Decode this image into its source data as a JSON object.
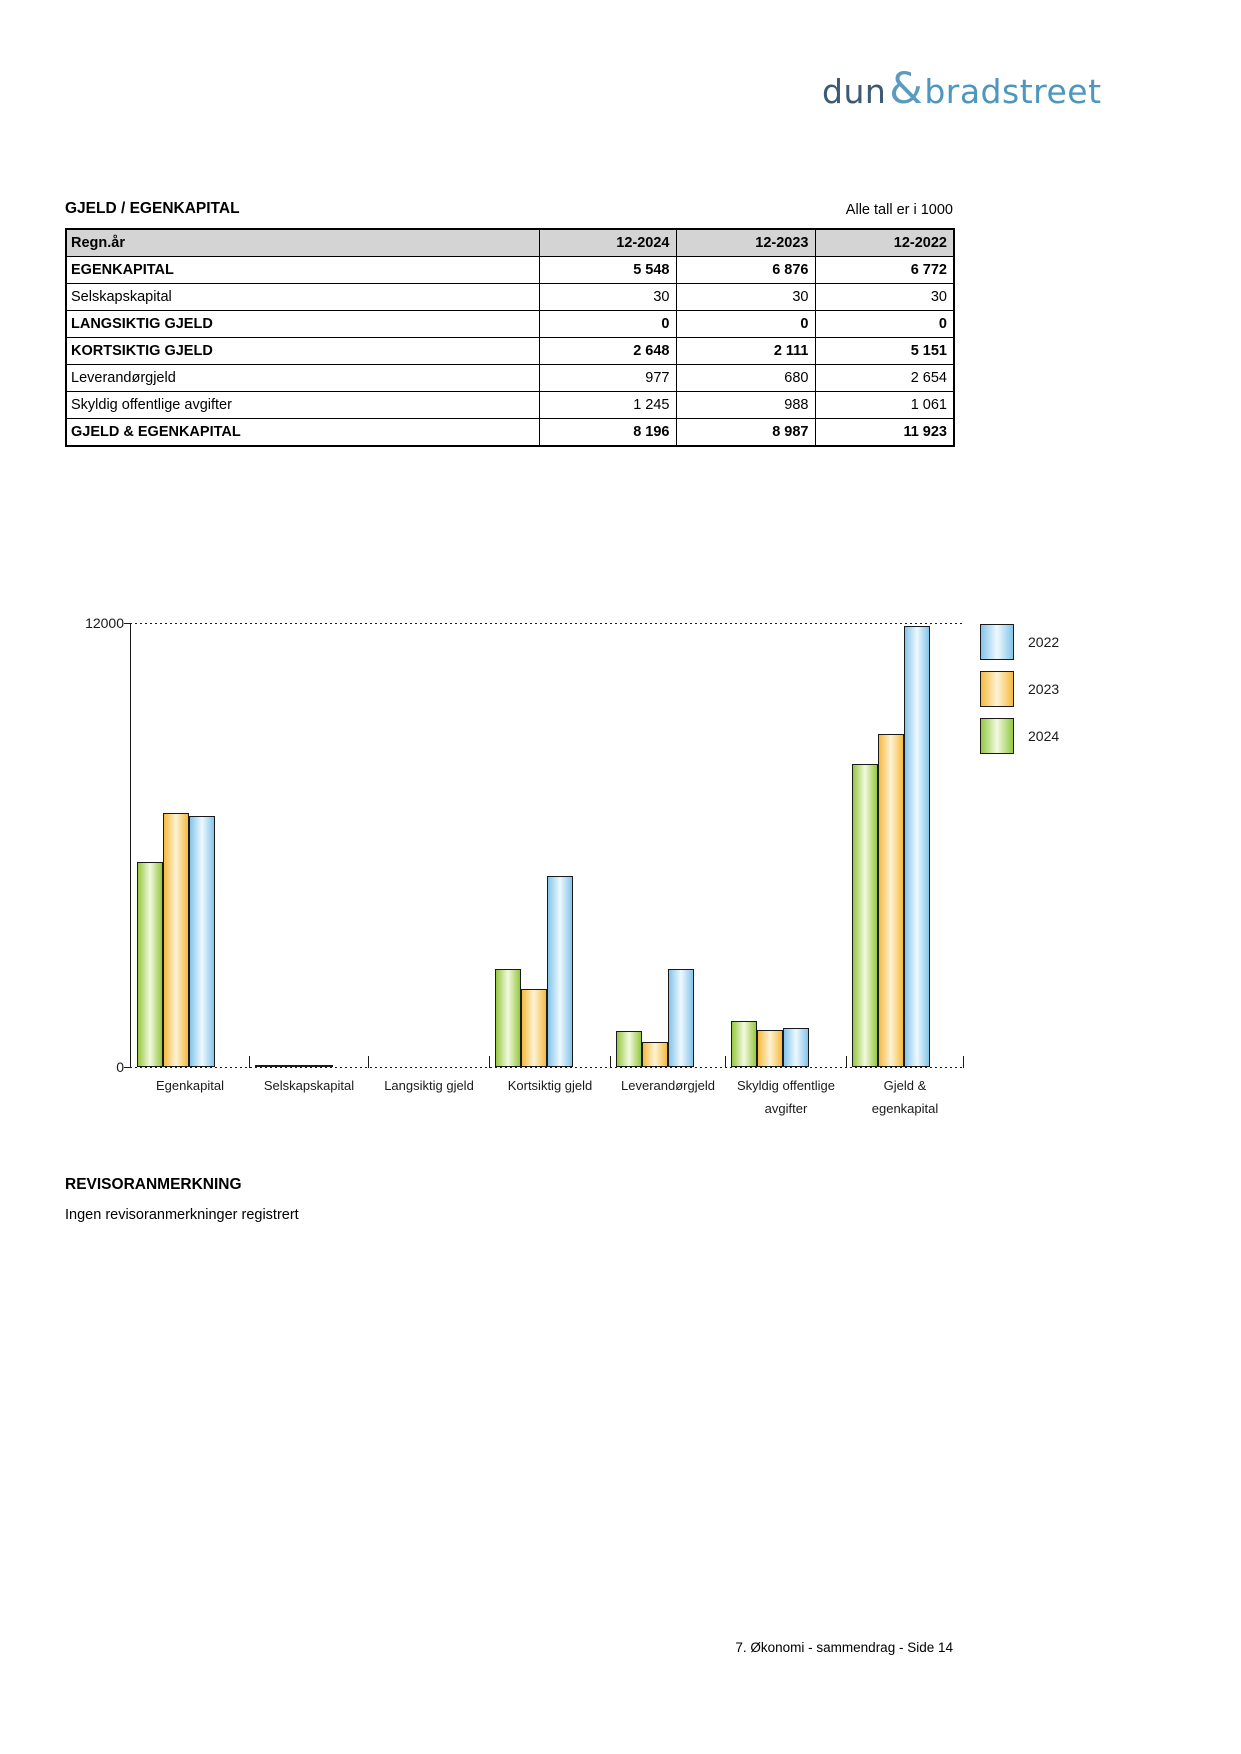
{
  "logo": {
    "dun": "dun",
    "amp": "&",
    "bradstreet": "bradstreet"
  },
  "section": {
    "title": "GJELD / EGENKAPITAL",
    "note": "Alle tall er i 1000"
  },
  "table": {
    "header": [
      "Regn.år",
      "12-2024",
      "12-2023",
      "12-2022"
    ],
    "rows": [
      {
        "label": "EGENKAPITAL",
        "bold": true,
        "values": [
          "5 548",
          "6 876",
          "6 772"
        ]
      },
      {
        "label": "Selskapskapital",
        "bold": false,
        "values": [
          "30",
          "30",
          "30"
        ]
      },
      {
        "label": "LANGSIKTIG GJELD",
        "bold": true,
        "values": [
          "0",
          "0",
          "0"
        ]
      },
      {
        "label": "KORTSIKTIG GJELD",
        "bold": true,
        "values": [
          "2 648",
          "2 111",
          "5 151"
        ]
      },
      {
        "label": "Leverandørgjeld",
        "bold": false,
        "values": [
          "977",
          "680",
          "2 654"
        ]
      },
      {
        "label": "Skyldig offentlige avgifter",
        "bold": false,
        "values": [
          "1 245",
          "988",
          "1 061"
        ]
      },
      {
        "label": "GJELD & EGENKAPITAL",
        "bold": true,
        "values": [
          "8 196",
          "8 987",
          "11 923"
        ]
      }
    ]
  },
  "chart_data": {
    "type": "bar",
    "categories": [
      "Egenkapital",
      "Selskapskapital",
      "Langsiktig gjeld",
      "Kortsiktig gjeld",
      "Leverandørgjeld",
      "Skyldig offentlige\navgifter",
      "Gjeld &\negenkapital"
    ],
    "series": [
      {
        "name": "2024",
        "color_key": "2024",
        "values": [
          5548,
          30,
          0,
          2648,
          977,
          1245,
          8196
        ]
      },
      {
        "name": "2023",
        "color_key": "2023",
        "values": [
          6876,
          30,
          0,
          2111,
          680,
          988,
          8987
        ]
      },
      {
        "name": "2022",
        "color_key": "2022",
        "values": [
          6772,
          30,
          0,
          5151,
          2654,
          1061,
          11923
        ]
      }
    ],
    "legend": [
      {
        "label": "2022",
        "color_key": "2022"
      },
      {
        "label": "2023",
        "color_key": "2023"
      },
      {
        "label": "2024",
        "color_key": "2024"
      }
    ],
    "title": "",
    "xlabel": "",
    "ylabel": "",
    "ylim": [
      0,
      12000
    ],
    "yticks": [
      "0",
      "12000"
    ],
    "grid": "dotted-top-and-baseline",
    "legend_position": "right"
  },
  "colors": {
    "series": {
      "2024": {
        "edge": "#94c841",
        "mid": "#f3f9e1"
      },
      "2023": {
        "edge": "#f6ba3e",
        "mid": "#fdf3d6"
      },
      "2022": {
        "edge": "#84c4ea",
        "mid": "#eef9ff"
      },
      "outline": "#1a1a1a"
    },
    "table_header_bg": "#d4d4d4",
    "logo_dun": "#3d5a73",
    "logo_amp": "#5b9bc2",
    "logo_bradstreet": "#4d96bf"
  },
  "remarks": {
    "heading": "REVISORANMERKNING",
    "body": "Ingen revisoranmerkninger registrert"
  },
  "footer": {
    "text": "7. Økonomi - sammendrag - Side 14"
  }
}
